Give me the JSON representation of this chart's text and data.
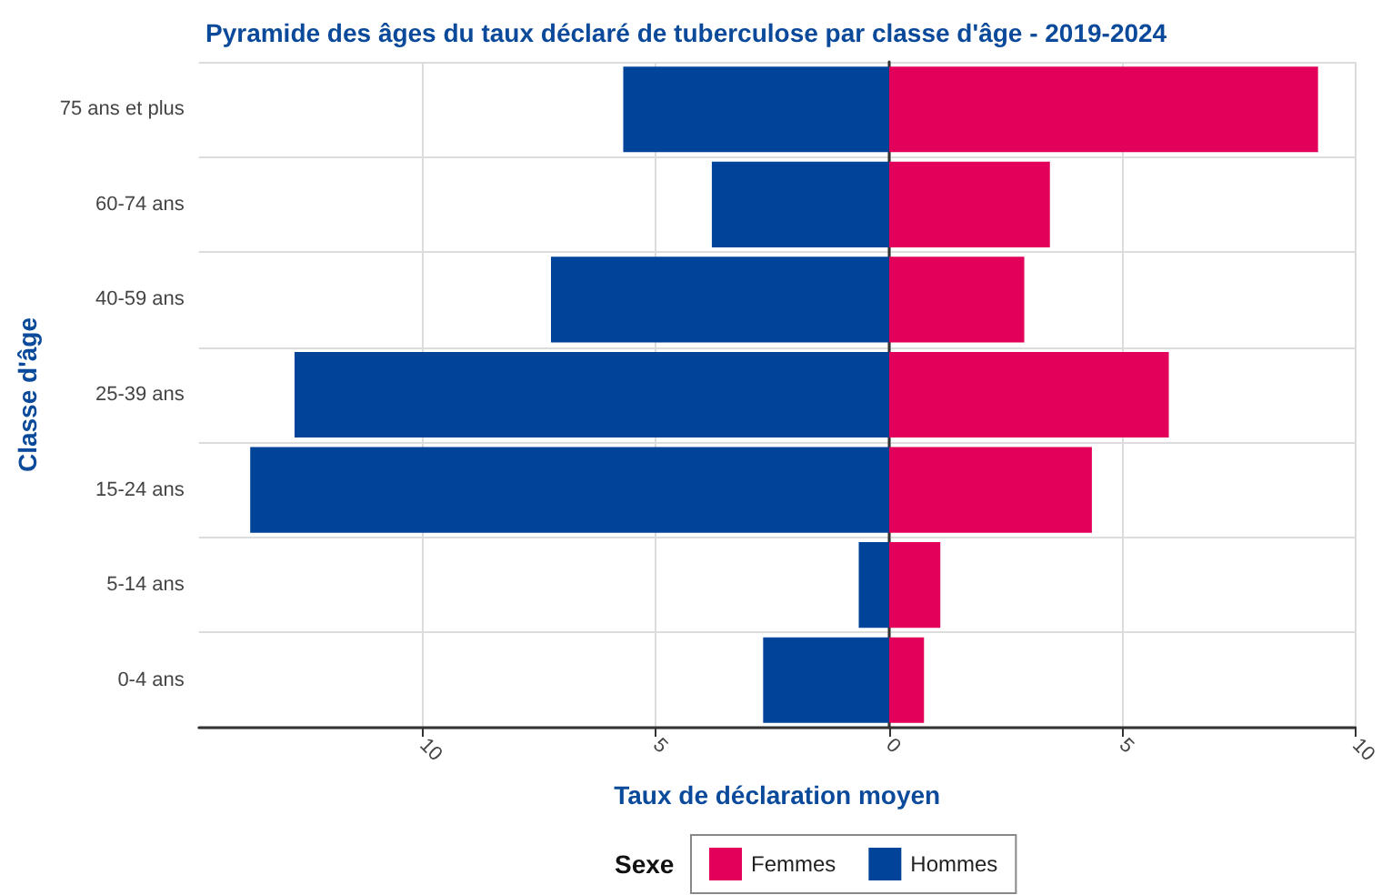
{
  "chart_data": {
    "type": "bar",
    "orientation": "horizontal",
    "title": "Pyramide des âges du taux déclaré de tuberculose par classe d'âge - 2019-2024",
    "xlabel": "Taux de déclaration moyen",
    "ylabel": "Classe d'âge",
    "legend_title": "Sexe",
    "legend": "bottom",
    "grid": true,
    "stacked": true,
    "categories": [
      "75 ans et plus",
      "60-74 ans",
      "40-59 ans",
      "25-39 ans",
      "15-24 ans",
      "5-14 ans",
      "0-4 ans"
    ],
    "series": [
      {
        "name": "Femmes",
        "color": "#e2005a",
        "values": [
          9.2,
          3.45,
          2.9,
          6.0,
          4.35,
          1.1,
          0.75
        ]
      },
      {
        "name": "Hommes",
        "color": "#00449a",
        "values": [
          -5.7,
          -3.8,
          -7.25,
          -12.75,
          -13.7,
          -0.65,
          -2.7
        ]
      }
    ],
    "xlim": [
      -14.8,
      10
    ],
    "xticks": [
      {
        "value": -10,
        "label": "10"
      },
      {
        "value": -5,
        "label": "5"
      },
      0,
      5,
      10
    ]
  }
}
